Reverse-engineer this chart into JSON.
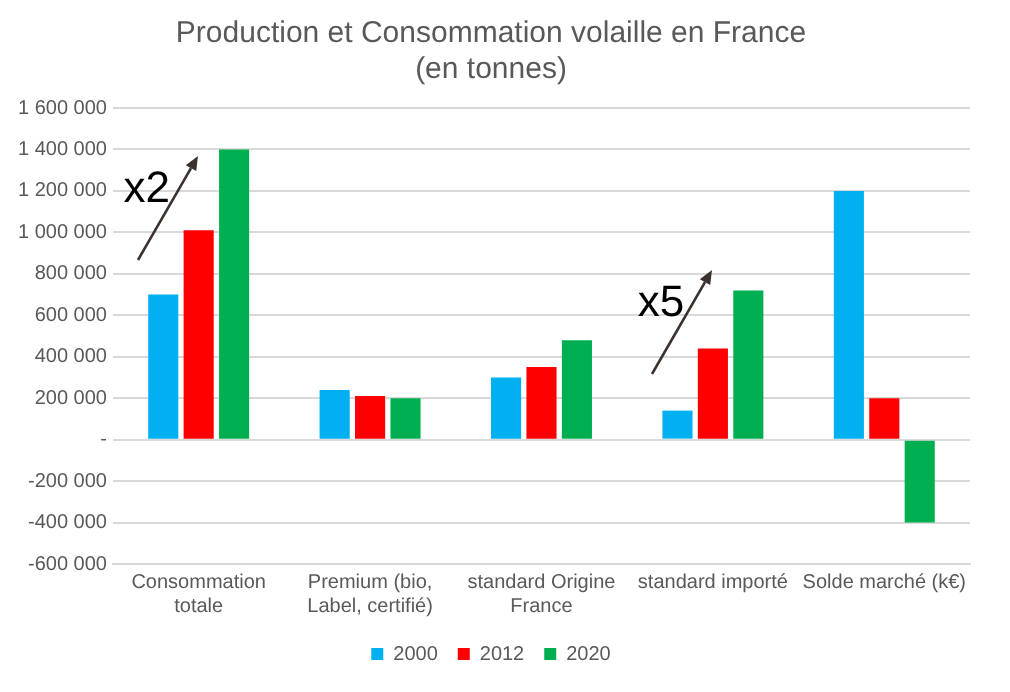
{
  "chart_data": {
    "type": "bar",
    "title": "Production et Consommation volaille en France (en tonnes)",
    "categories": [
      "Consommation totale",
      "Premium (bio, Label, certifié)",
      "standard Origine France",
      "standard importé",
      "Solde marché (k€)"
    ],
    "series": [
      {
        "name": "2000",
        "color": "#00b0f0",
        "values": [
          700000,
          240000,
          300000,
          140000,
          1200000
        ]
      },
      {
        "name": "2012",
        "color": "#ff0000",
        "values": [
          1010000,
          210000,
          350000,
          440000,
          200000
        ]
      },
      {
        "name": "2020",
        "color": "#00b050",
        "values": [
          1400000,
          200000,
          480000,
          720000,
          -400000
        ]
      }
    ],
    "ylim": [
      -600000,
      1600000
    ],
    "yticks": [
      -600000,
      -400000,
      -200000,
      {
        "value": 0,
        "label": "-"
      },
      200000,
      400000,
      600000,
      800000,
      1000000,
      1200000,
      1400000,
      1600000
    ],
    "grid": "y",
    "legend": "bottom",
    "annotations": [
      "x2",
      "x5"
    ]
  }
}
